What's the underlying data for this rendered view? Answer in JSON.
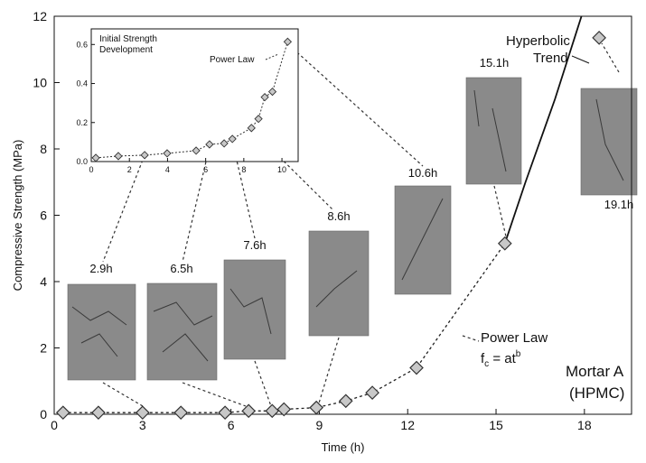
{
  "chart_data": {
    "type": "scatter",
    "x_label": "Time (h)",
    "y_label": "Compressive Strength (MPa)",
    "xlim": [
      0,
      19.6
    ],
    "ylim": [
      0,
      12
    ],
    "xticks": [
      0,
      3,
      6,
      9,
      12,
      15,
      18
    ],
    "yticks": [
      0,
      2,
      4,
      6,
      8,
      10,
      12
    ],
    "x": [
      0.3,
      1.5,
      3.0,
      4.3,
      5.8,
      6.6,
      7.4,
      7.8,
      8.9,
      9.9,
      10.8,
      12.3,
      15.3,
      18.5
    ],
    "values": [
      0.05,
      0.05,
      0.05,
      0.05,
      0.05,
      0.1,
      0.1,
      0.15,
      0.2,
      0.4,
      0.65,
      1.4,
      5.15,
      11.35
    ],
    "hyperbolic_curve": {
      "x": [
        15.3,
        16,
        17,
        17.9
      ],
      "values": [
        5.15,
        7.0,
        9.5,
        12
      ]
    },
    "annotations": {
      "hyperbolic": [
        "Hyperbolic",
        "Trend"
      ],
      "power_law": "Power Law",
      "formula": "f",
      "formula_sub": "c",
      "formula_rest": " = at",
      "formula_sup": "b",
      "mortar": [
        "Mortar A",
        "(HPMC)"
      ],
      "photo_labels": [
        "2.9h",
        "6.5h",
        "7.6h",
        "8.6h",
        "10.6h",
        "15.1h",
        "19.1h"
      ]
    },
    "inset": {
      "title": [
        "Initial Strength",
        "Development"
      ],
      "annotation": "Power Law",
      "xlim": [
        0,
        10.85
      ],
      "ylim": [
        0,
        0.68
      ],
      "xticks": [
        0,
        2,
        4,
        6,
        8,
        10
      ],
      "yticks": [
        {
          "value": 0,
          "label": "0.0"
        },
        0.2,
        0.4,
        0.6
      ],
      "x": [
        0.24,
        1.42,
        2.8,
        3.98,
        5.5,
        6.2,
        6.97,
        7.4,
        8.4,
        8.77,
        9.1,
        9.5,
        10.3
      ],
      "values": [
        0.019,
        0.028,
        0.033,
        0.042,
        0.056,
        0.088,
        0.093,
        0.116,
        0.172,
        0.219,
        0.33,
        0.358,
        0.614
      ]
    }
  }
}
